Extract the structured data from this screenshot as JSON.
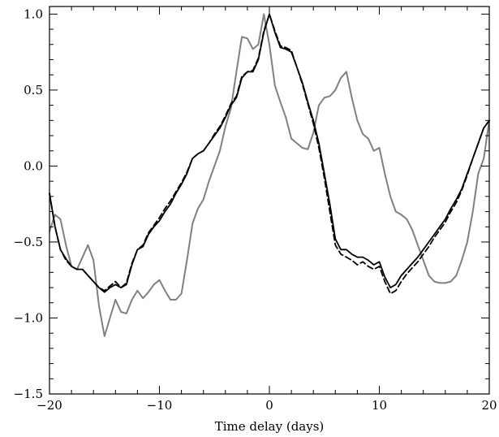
{
  "chart_data": {
    "type": "line",
    "title": "",
    "xlabel": "Time delay (days)",
    "ylabel": "",
    "xlim": [
      -20,
      20
    ],
    "ylim": [
      -1.5,
      1.05
    ],
    "xticks": [
      -20,
      -10,
      0,
      10,
      20
    ],
    "xtick_labels": [
      "−20",
      "−10",
      "0",
      "10",
      "20"
    ],
    "yticks": [
      -1.5,
      -1.0,
      -0.5,
      0.0,
      0.5,
      1.0
    ],
    "ytick_labels": [
      "−1.5",
      "−1.0",
      "−0.5",
      "0.0",
      "0.5",
      "1.0"
    ],
    "grid": false,
    "legend": "none",
    "series": [
      {
        "style": "solid",
        "color": "#000000",
        "x": [
          -20,
          -19.5,
          -19,
          -18.5,
          -18,
          -17.5,
          -17,
          -16.5,
          -16,
          -15.5,
          -15,
          -14.5,
          -14,
          -13.5,
          -13,
          -12.5,
          -12,
          -11.5,
          -11,
          -10.5,
          -10,
          -9.5,
          -9,
          -8.5,
          -8,
          -7.5,
          -7,
          -6.5,
          -6,
          -5.5,
          -5,
          -4.5,
          -4,
          -3.5,
          -3,
          -2.5,
          -2,
          -1.5,
          -1,
          -0.5,
          0,
          0.5,
          1,
          1.5,
          2,
          2.5,
          3,
          3.5,
          4,
          4.5,
          5,
          5.5,
          6,
          6.5,
          7,
          7.5,
          8,
          8.5,
          9,
          9.5,
          10,
          10.5,
          11,
          11.5,
          12,
          12.5,
          13,
          13.5,
          14,
          14.5,
          15,
          15.5,
          16,
          16.5,
          17,
          17.5,
          18,
          18.5,
          19,
          19.5,
          20
        ],
        "y": [
          -0.18,
          -0.4,
          -0.55,
          -0.61,
          -0.66,
          -0.68,
          -0.68,
          -0.72,
          -0.76,
          -0.8,
          -0.83,
          -0.8,
          -0.78,
          -0.8,
          -0.78,
          -0.65,
          -0.55,
          -0.53,
          -0.45,
          -0.4,
          -0.36,
          -0.3,
          -0.25,
          -0.18,
          -0.12,
          -0.05,
          0.05,
          0.08,
          0.1,
          0.15,
          0.2,
          0.25,
          0.32,
          0.4,
          0.45,
          0.58,
          0.62,
          0.62,
          0.7,
          0.88,
          1.0,
          0.88,
          0.78,
          0.77,
          0.75,
          0.65,
          0.55,
          0.42,
          0.3,
          0.15,
          -0.05,
          -0.25,
          -0.48,
          -0.55,
          -0.55,
          -0.58,
          -0.6,
          -0.6,
          -0.62,
          -0.65,
          -0.63,
          -0.73,
          -0.8,
          -0.78,
          -0.72,
          -0.68,
          -0.64,
          -0.6,
          -0.55,
          -0.5,
          -0.45,
          -0.4,
          -0.35,
          -0.28,
          -0.22,
          -0.15,
          -0.05,
          0.05,
          0.15,
          0.25,
          0.3
        ]
      },
      {
        "style": "dashed",
        "color": "#000000",
        "x": [
          -20,
          -19.5,
          -19,
          -18.5,
          -18,
          -17.5,
          -17,
          -16.5,
          -16,
          -15.5,
          -15,
          -14.5,
          -14,
          -13.5,
          -13,
          -12.5,
          -12,
          -11.5,
          -11,
          -10.5,
          -10,
          -9.5,
          -9,
          -8.5,
          -8,
          -7.5,
          -7,
          -6.5,
          -6,
          -5.5,
          -5,
          -4.5,
          -4,
          -3.5,
          -3,
          -2.5,
          -2,
          -1.5,
          -1,
          -0.5,
          0,
          0.5,
          1,
          1.5,
          2,
          2.5,
          3,
          3.5,
          4,
          4.5,
          5,
          5.5,
          6,
          6.5,
          7,
          7.5,
          8,
          8.5,
          9,
          9.5,
          10,
          10.5,
          11,
          11.5,
          12,
          12.5,
          13,
          13.5,
          14,
          14.5,
          15,
          15.5,
          16,
          16.5,
          17,
          17.5,
          18,
          18.5,
          19,
          19.5,
          20
        ],
        "y": [
          -0.18,
          -0.4,
          -0.55,
          -0.62,
          -0.66,
          -0.68,
          -0.68,
          -0.72,
          -0.76,
          -0.8,
          -0.82,
          -0.79,
          -0.76,
          -0.8,
          -0.77,
          -0.64,
          -0.55,
          -0.52,
          -0.44,
          -0.39,
          -0.34,
          -0.28,
          -0.23,
          -0.17,
          -0.11,
          -0.04,
          0.05,
          0.08,
          0.1,
          0.15,
          0.21,
          0.26,
          0.33,
          0.41,
          0.46,
          0.59,
          0.62,
          0.63,
          0.71,
          0.89,
          1.0,
          0.89,
          0.79,
          0.78,
          0.76,
          0.65,
          0.54,
          0.41,
          0.28,
          0.12,
          -0.08,
          -0.3,
          -0.52,
          -0.58,
          -0.6,
          -0.62,
          -0.65,
          -0.63,
          -0.66,
          -0.68,
          -0.66,
          -0.76,
          -0.84,
          -0.82,
          -0.76,
          -0.71,
          -0.67,
          -0.63,
          -0.58,
          -0.53,
          -0.47,
          -0.42,
          -0.37,
          -0.3,
          -0.24,
          -0.16,
          -0.06,
          0.05,
          0.15,
          0.25,
          0.3
        ]
      },
      {
        "style": "solid",
        "color": "#808080",
        "x": [
          -20,
          -19.5,
          -19,
          -18.5,
          -18,
          -17.5,
          -17,
          -16.5,
          -16,
          -15.5,
          -15,
          -14.5,
          -14,
          -13.5,
          -13,
          -12.5,
          -12,
          -11.5,
          -11,
          -10.5,
          -10,
          -9.5,
          -9,
          -8.5,
          -8,
          -7.5,
          -7,
          -6.5,
          -6,
          -5.5,
          -5,
          -4.5,
          -4,
          -3.5,
          -3,
          -2.5,
          -2,
          -1.5,
          -1,
          -0.5,
          0,
          0.5,
          1,
          1.5,
          2,
          2.5,
          3,
          3.5,
          4,
          4.5,
          5,
          5.5,
          6,
          6.5,
          7,
          7.5,
          8,
          8.5,
          9,
          9.5,
          10,
          10.5,
          11,
          11.5,
          12,
          12.5,
          13,
          13.5,
          14,
          14.5,
          15,
          15.5,
          16,
          16.5,
          17,
          17.5,
          18,
          18.5,
          19,
          19.5,
          20
        ],
        "y": [
          -0.43,
          -0.32,
          -0.35,
          -0.52,
          -0.66,
          -0.68,
          -0.6,
          -0.52,
          -0.62,
          -0.92,
          -1.12,
          -1.0,
          -0.88,
          -0.96,
          -0.97,
          -0.88,
          -0.82,
          -0.87,
          -0.83,
          -0.78,
          -0.75,
          -0.82,
          -0.88,
          -0.88,
          -0.84,
          -0.62,
          -0.38,
          -0.28,
          -0.22,
          -0.1,
          0.0,
          0.1,
          0.26,
          0.38,
          0.62,
          0.85,
          0.84,
          0.77,
          0.8,
          1.0,
          0.8,
          0.53,
          0.42,
          0.32,
          0.18,
          0.15,
          0.12,
          0.11,
          0.22,
          0.4,
          0.45,
          0.46,
          0.5,
          0.58,
          0.62,
          0.45,
          0.3,
          0.21,
          0.18,
          0.1,
          0.12,
          -0.05,
          -0.2,
          -0.3,
          -0.32,
          -0.35,
          -0.42,
          -0.52,
          -0.62,
          -0.72,
          -0.76,
          -0.77,
          -0.77,
          -0.76,
          -0.72,
          -0.62,
          -0.5,
          -0.3,
          -0.05,
          0.05,
          0.3
        ]
      }
    ]
  }
}
